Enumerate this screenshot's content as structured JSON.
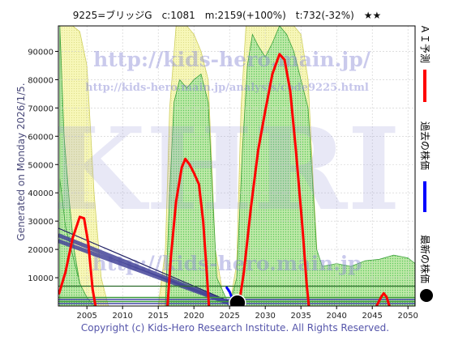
{
  "header": {
    "title": "9225=ブリッジG　c:1081　m:2159(+100%)　t:732(-32%)　★★"
  },
  "side_label": "Generated on Monday 2026/1/5.",
  "watermarks": {
    "url_large": "http://kids-hero.main.jp/",
    "url_small": "http://kids-hero.main.jp/analysis/code9225.html",
    "logo": "KHRI",
    "url_lower": "http://kids-hero.main.jp"
  },
  "legend": {
    "ai_forecast": "ＡＩ予測",
    "past_price": "過去の株価",
    "latest_price": "最新の株価",
    "colors": {
      "ai": "#ff0000",
      "past": "#0000ff",
      "latest": "#000000"
    }
  },
  "copyright": "Copyright (c) Kids-Hero Research Institute. All Rights Reserved.",
  "chart_data": {
    "type": "line",
    "xlim": [
      2001,
      2051
    ],
    "ylim": [
      0,
      99000
    ],
    "x_ticks": [
      2005,
      2010,
      2015,
      2020,
      2025,
      2030,
      2035,
      2040,
      2045,
      2050
    ],
    "y_ticks": [
      10000,
      20000,
      30000,
      40000,
      50000,
      60000,
      70000,
      80000,
      90000
    ],
    "grid": true,
    "series": [
      {
        "name": "ＡＩ予測",
        "color": "#ff0000",
        "segments": [
          [
            [
              2001.1,
              4500
            ],
            [
              2002,
              12000
            ],
            [
              2003,
              24000
            ],
            [
              2004,
              31500
            ],
            [
              2004.6,
              31000
            ],
            [
              2005.2,
              22000
            ],
            [
              2005.8,
              6000
            ],
            [
              2006.2,
              0
            ]
          ],
          [
            [
              2016.3,
              0
            ],
            [
              2016.8,
              18000
            ],
            [
              2017.5,
              37000
            ],
            [
              2018.3,
              49000
            ],
            [
              2018.8,
              52000
            ],
            [
              2019.4,
              50000
            ],
            [
              2020,
              47000
            ],
            [
              2020.7,
              43000
            ],
            [
              2021.3,
              30000
            ],
            [
              2021.8,
              12000
            ],
            [
              2022.1,
              0
            ]
          ],
          [
            [
              2026.3,
              0
            ],
            [
              2027,
              12000
            ],
            [
              2028,
              35000
            ],
            [
              2029,
              55000
            ],
            [
              2030,
              69000
            ],
            [
              2031,
              82000
            ],
            [
              2032,
              89000
            ],
            [
              2032.7,
              87000
            ],
            [
              2033.5,
              76000
            ],
            [
              2034.3,
              55000
            ],
            [
              2035.2,
              28000
            ],
            [
              2035.8,
              8000
            ],
            [
              2036.1,
              0
            ]
          ],
          [
            [
              2045.6,
              0
            ],
            [
              2046.2,
              3000
            ],
            [
              2046.6,
              4500
            ],
            [
              2047,
              3200
            ],
            [
              2047.4,
              0
            ]
          ]
        ]
      },
      {
        "name": "過去の株価",
        "color": "#0000ff",
        "segments": [
          [
            [
              2024.6,
              6500
            ],
            [
              2025,
              5000
            ],
            [
              2025.4,
              2500
            ],
            [
              2025.8,
              1400
            ],
            [
              2026.1,
              1081
            ]
          ]
        ]
      },
      {
        "name": "最新の株価",
        "color": "#000000",
        "points": [
          [
            2026.1,
            1081
          ]
        ]
      }
    ],
    "bands": {
      "green_upper": [
        [
          2001.2,
          99000
        ],
        [
          2001.8,
          60000
        ],
        [
          2002.5,
          38000
        ],
        [
          2003.2,
          20000
        ],
        [
          2004,
          8000
        ],
        [
          2005,
          0
        ],
        [
          2016,
          0
        ],
        [
          2016.6,
          40000
        ],
        [
          2017.2,
          72000
        ],
        [
          2018,
          80000
        ],
        [
          2019,
          77000
        ],
        [
          2020,
          80000
        ],
        [
          2021,
          82000
        ],
        [
          2022,
          72000
        ],
        [
          2022.6,
          40000
        ],
        [
          2023.2,
          10000
        ],
        [
          2025,
          0
        ],
        [
          2026,
          10000
        ],
        [
          2026.8,
          55000
        ],
        [
          2027.5,
          85000
        ],
        [
          2028.2,
          96000
        ],
        [
          2029,
          92000
        ],
        [
          2030,
          88000
        ],
        [
          2031,
          93000
        ],
        [
          2032,
          99000
        ],
        [
          2033,
          96000
        ],
        [
          2034,
          90000
        ],
        [
          2035,
          80000
        ],
        [
          2036,
          70000
        ],
        [
          2036.6,
          45000
        ],
        [
          2037.2,
          20000
        ],
        [
          2038,
          14000
        ],
        [
          2040,
          15000
        ],
        [
          2042,
          14000
        ],
        [
          2044,
          16000
        ],
        [
          2046,
          16500
        ],
        [
          2048,
          18000
        ],
        [
          2050,
          17000
        ],
        [
          2051,
          15000
        ]
      ],
      "yellow_upper": [
        [
          2001.2,
          99000
        ],
        [
          2003,
          99000
        ],
        [
          2004,
          97000
        ],
        [
          2005,
          85000
        ],
        [
          2006,
          40000
        ],
        [
          2007,
          10000
        ],
        [
          2008,
          0
        ],
        [
          2015,
          0
        ],
        [
          2016,
          20000
        ],
        [
          2016.6,
          70000
        ],
        [
          2017.5,
          99000
        ],
        [
          2019,
          99000
        ],
        [
          2020,
          96000
        ],
        [
          2021,
          90000
        ],
        [
          2022,
          80000
        ],
        [
          2022.5,
          50000
        ],
        [
          2023,
          20000
        ],
        [
          2024,
          5000
        ],
        [
          2025,
          0
        ],
        [
          2026,
          15000
        ],
        [
          2026.6,
          70000
        ],
        [
          2027.3,
          99000
        ],
        [
          2034,
          99000
        ],
        [
          2035,
          96000
        ],
        [
          2036,
          80000
        ],
        [
          2036.8,
          40000
        ],
        [
          2037.5,
          8000
        ],
        [
          2038,
          0
        ],
        [
          2051,
          0
        ]
      ],
      "green_lower": [
        [
          2001.2,
          45000
        ],
        [
          2002,
          28000
        ],
        [
          2003,
          18000
        ],
        [
          2004,
          8000
        ],
        [
          2005,
          3000
        ],
        [
          2006,
          0
        ],
        [
          2051,
          0
        ]
      ],
      "hatch_a": [
        [
          2001,
          25000
        ],
        [
          2026,
          0
        ]
      ],
      "hatch_b": [
        [
          2001,
          23000
        ],
        [
          2026,
          0
        ]
      ],
      "trend_line": [
        [
          2001,
          27500
        ],
        [
          2026.5,
          0
        ]
      ],
      "flat_line": [
        [
          2001,
          7000
        ],
        [
          2051,
          7000
        ]
      ]
    }
  }
}
